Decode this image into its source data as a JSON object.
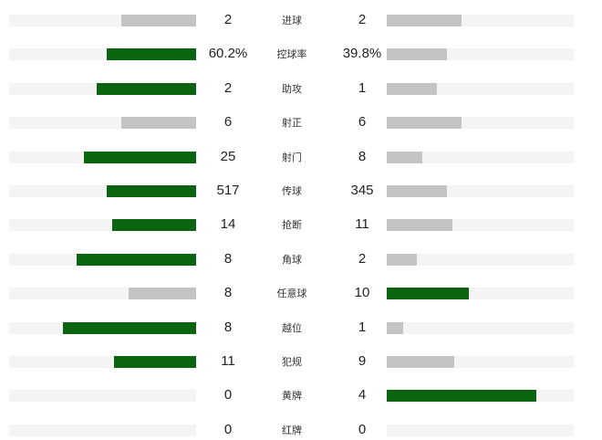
{
  "colors": {
    "leading": "#0b6410",
    "trailing": "#c4c4c4",
    "track": "#f4f4f4"
  },
  "stats": [
    {
      "label": "进球",
      "home": "2",
      "away": "2",
      "home_fraction": 0.4,
      "away_fraction": 0.4,
      "leader": "none"
    },
    {
      "label": "控球率",
      "home": "60.2%",
      "away": "39.8%",
      "home_fraction": 0.48,
      "away_fraction": 0.32,
      "leader": "home"
    },
    {
      "label": "助攻",
      "home": "2",
      "away": "1",
      "home_fraction": 0.53,
      "away_fraction": 0.27,
      "leader": "home"
    },
    {
      "label": "射正",
      "home": "6",
      "away": "6",
      "home_fraction": 0.4,
      "away_fraction": 0.4,
      "leader": "none"
    },
    {
      "label": "射门",
      "home": "25",
      "away": "8",
      "home_fraction": 0.6,
      "away_fraction": 0.19,
      "leader": "home"
    },
    {
      "label": "传球",
      "home": "517",
      "away": "345",
      "home_fraction": 0.48,
      "away_fraction": 0.32,
      "leader": "home"
    },
    {
      "label": "抢断",
      "home": "14",
      "away": "11",
      "home_fraction": 0.45,
      "away_fraction": 0.35,
      "leader": "home"
    },
    {
      "label": "角球",
      "home": "8",
      "away": "2",
      "home_fraction": 0.64,
      "away_fraction": 0.16,
      "leader": "home"
    },
    {
      "label": "任意球",
      "home": "8",
      "away": "10",
      "home_fraction": 0.36,
      "away_fraction": 0.44,
      "leader": "away"
    },
    {
      "label": "越位",
      "home": "8",
      "away": "1",
      "home_fraction": 0.71,
      "away_fraction": 0.09,
      "leader": "home"
    },
    {
      "label": "犯规",
      "home": "11",
      "away": "9",
      "home_fraction": 0.44,
      "away_fraction": 0.36,
      "leader": "home"
    },
    {
      "label": "黄牌",
      "home": "0",
      "away": "4",
      "home_fraction": 0,
      "away_fraction": 0.8,
      "leader": "away"
    },
    {
      "label": "红牌",
      "home": "0",
      "away": "0",
      "home_fraction": 0,
      "away_fraction": 0,
      "leader": "none"
    }
  ]
}
